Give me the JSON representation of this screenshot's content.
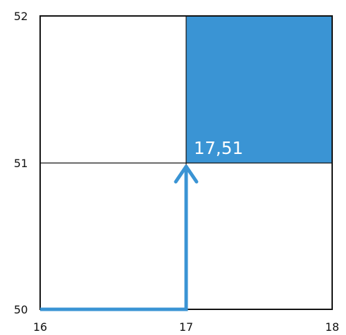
{
  "figure": {
    "x_ticks": [
      "16",
      "17",
      "18"
    ],
    "y_ticks": [
      "52",
      "51",
      "50"
    ],
    "highlighted_cell_label": "17,51"
  },
  "colors": {
    "highlight_fill": "#3a94d4",
    "path_stroke": "#3a94d4",
    "grid_line": "#111111",
    "border": "#111111"
  }
}
